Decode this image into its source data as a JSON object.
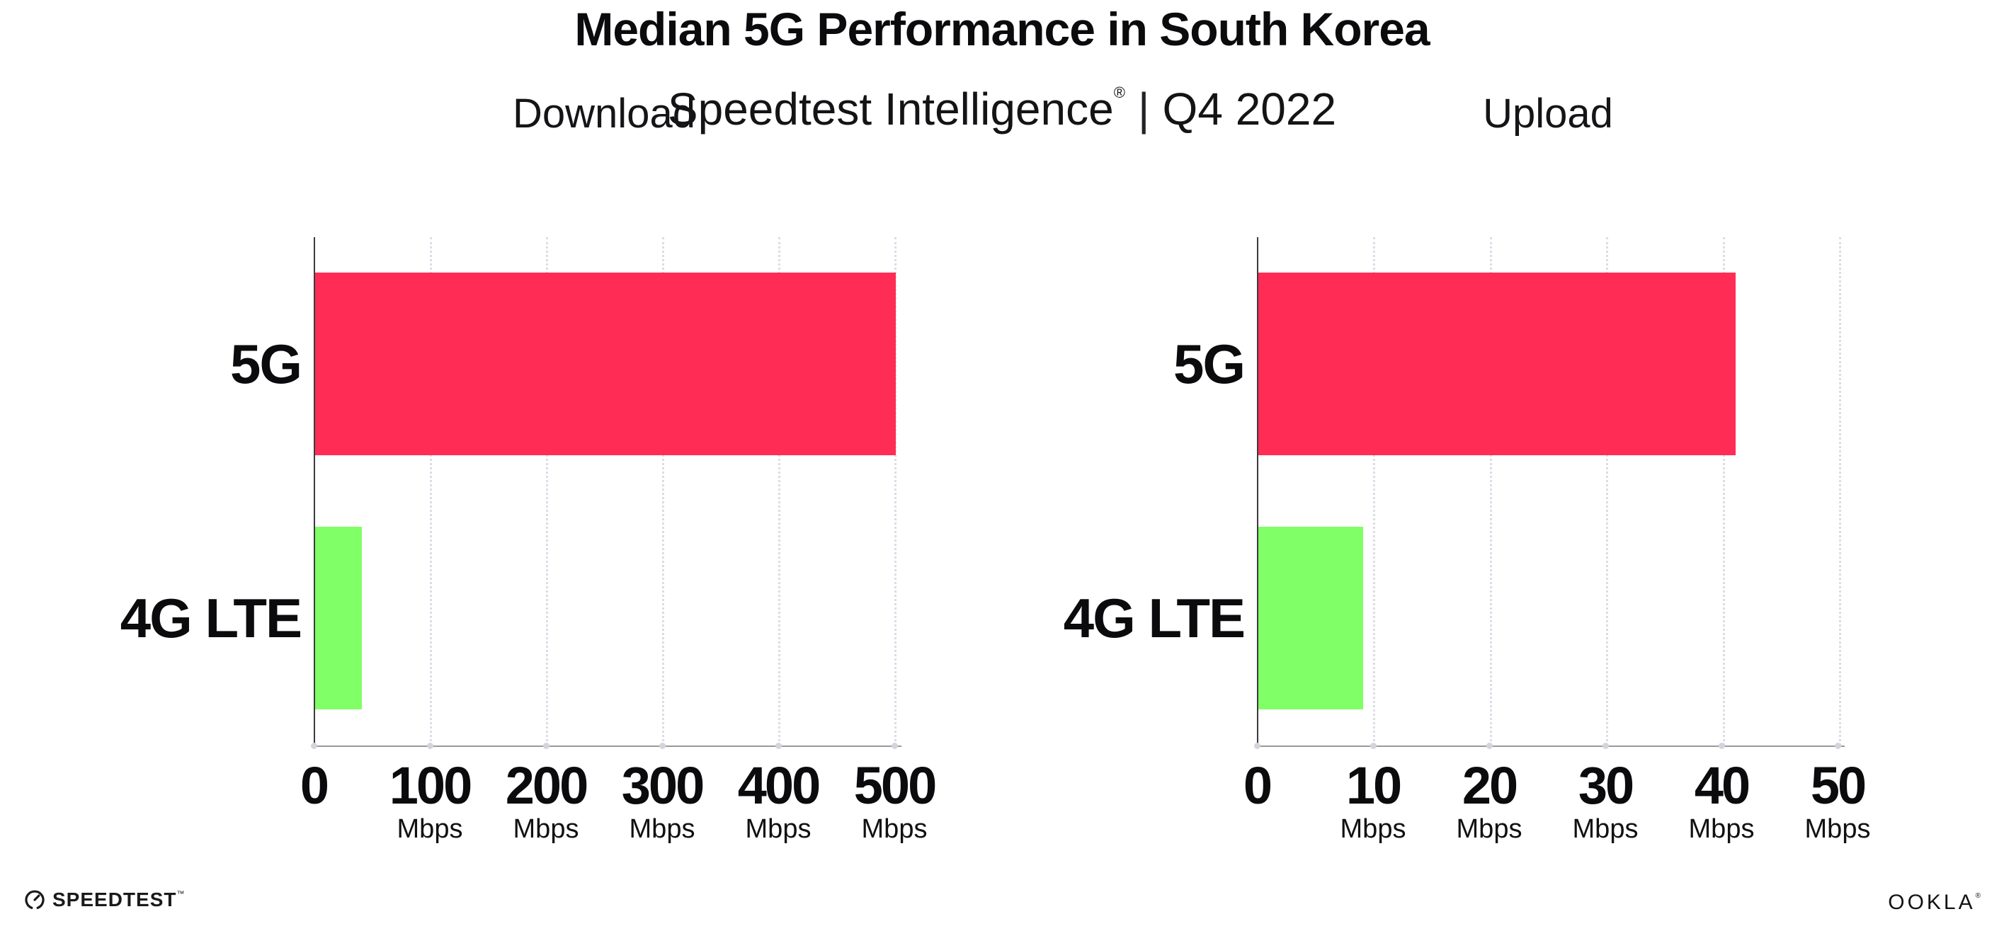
{
  "header": {
    "title": "Median 5G Performance in South Korea",
    "subtitle_brand": "Speedtest Intelligence",
    "subtitle_reg": "®",
    "subtitle_sep": "|",
    "subtitle_period": "Q4 2022"
  },
  "colors": {
    "bar_5g": "#FF2D55",
    "bar_4g": "#80FF66",
    "gridline": "#dcdce6",
    "x_axis": "#98989d",
    "y_axis": "#3a3a41"
  },
  "charts": [
    {
      "title": "Download",
      "categories": [
        "5G",
        "4G LTE"
      ],
      "values": [
        500,
        40
      ],
      "xmax": 500,
      "ticks": [
        {
          "num": "0",
          "unit": ""
        },
        {
          "num": "100",
          "unit": "Mbps"
        },
        {
          "num": "200",
          "unit": "Mbps"
        },
        {
          "num": "300",
          "unit": "Mbps"
        },
        {
          "num": "400",
          "unit": "Mbps"
        },
        {
          "num": "500",
          "unit": "Mbps"
        }
      ]
    },
    {
      "title": "Upload",
      "categories": [
        "5G",
        "4G LTE"
      ],
      "values": [
        41,
        9
      ],
      "xmax": 50,
      "ticks": [
        {
          "num": "0",
          "unit": ""
        },
        {
          "num": "10",
          "unit": "Mbps"
        },
        {
          "num": "20",
          "unit": "Mbps"
        },
        {
          "num": "30",
          "unit": "Mbps"
        },
        {
          "num": "40",
          "unit": "Mbps"
        },
        {
          "num": "50",
          "unit": "Mbps"
        }
      ]
    }
  ],
  "footer": {
    "speedtest_label": "SPEEDTEST",
    "speedtest_tm": "™",
    "ookla_label": "OOKLA",
    "ookla_reg": "®"
  },
  "chart_data": [
    {
      "type": "bar",
      "orientation": "horizontal",
      "title": "Download",
      "categories": [
        "5G",
        "4G LTE"
      ],
      "values": [
        500,
        40
      ],
      "unit": "Mbps",
      "xlabel": "Mbps",
      "ylabel": "",
      "xlim": [
        0,
        500
      ],
      "xticks": [
        0,
        100,
        200,
        300,
        400,
        500
      ],
      "bar_colors": [
        "#FF2D55",
        "#80FF66"
      ],
      "grid": "vertical dotted",
      "legend": "none"
    },
    {
      "type": "bar",
      "orientation": "horizontal",
      "title": "Upload",
      "categories": [
        "5G",
        "4G LTE"
      ],
      "values": [
        41,
        9
      ],
      "unit": "Mbps",
      "xlabel": "Mbps",
      "ylabel": "",
      "xlim": [
        0,
        50
      ],
      "xticks": [
        0,
        10,
        20,
        30,
        40,
        50
      ],
      "bar_colors": [
        "#FF2D55",
        "#80FF66"
      ],
      "grid": "vertical dotted",
      "legend": "none"
    }
  ]
}
